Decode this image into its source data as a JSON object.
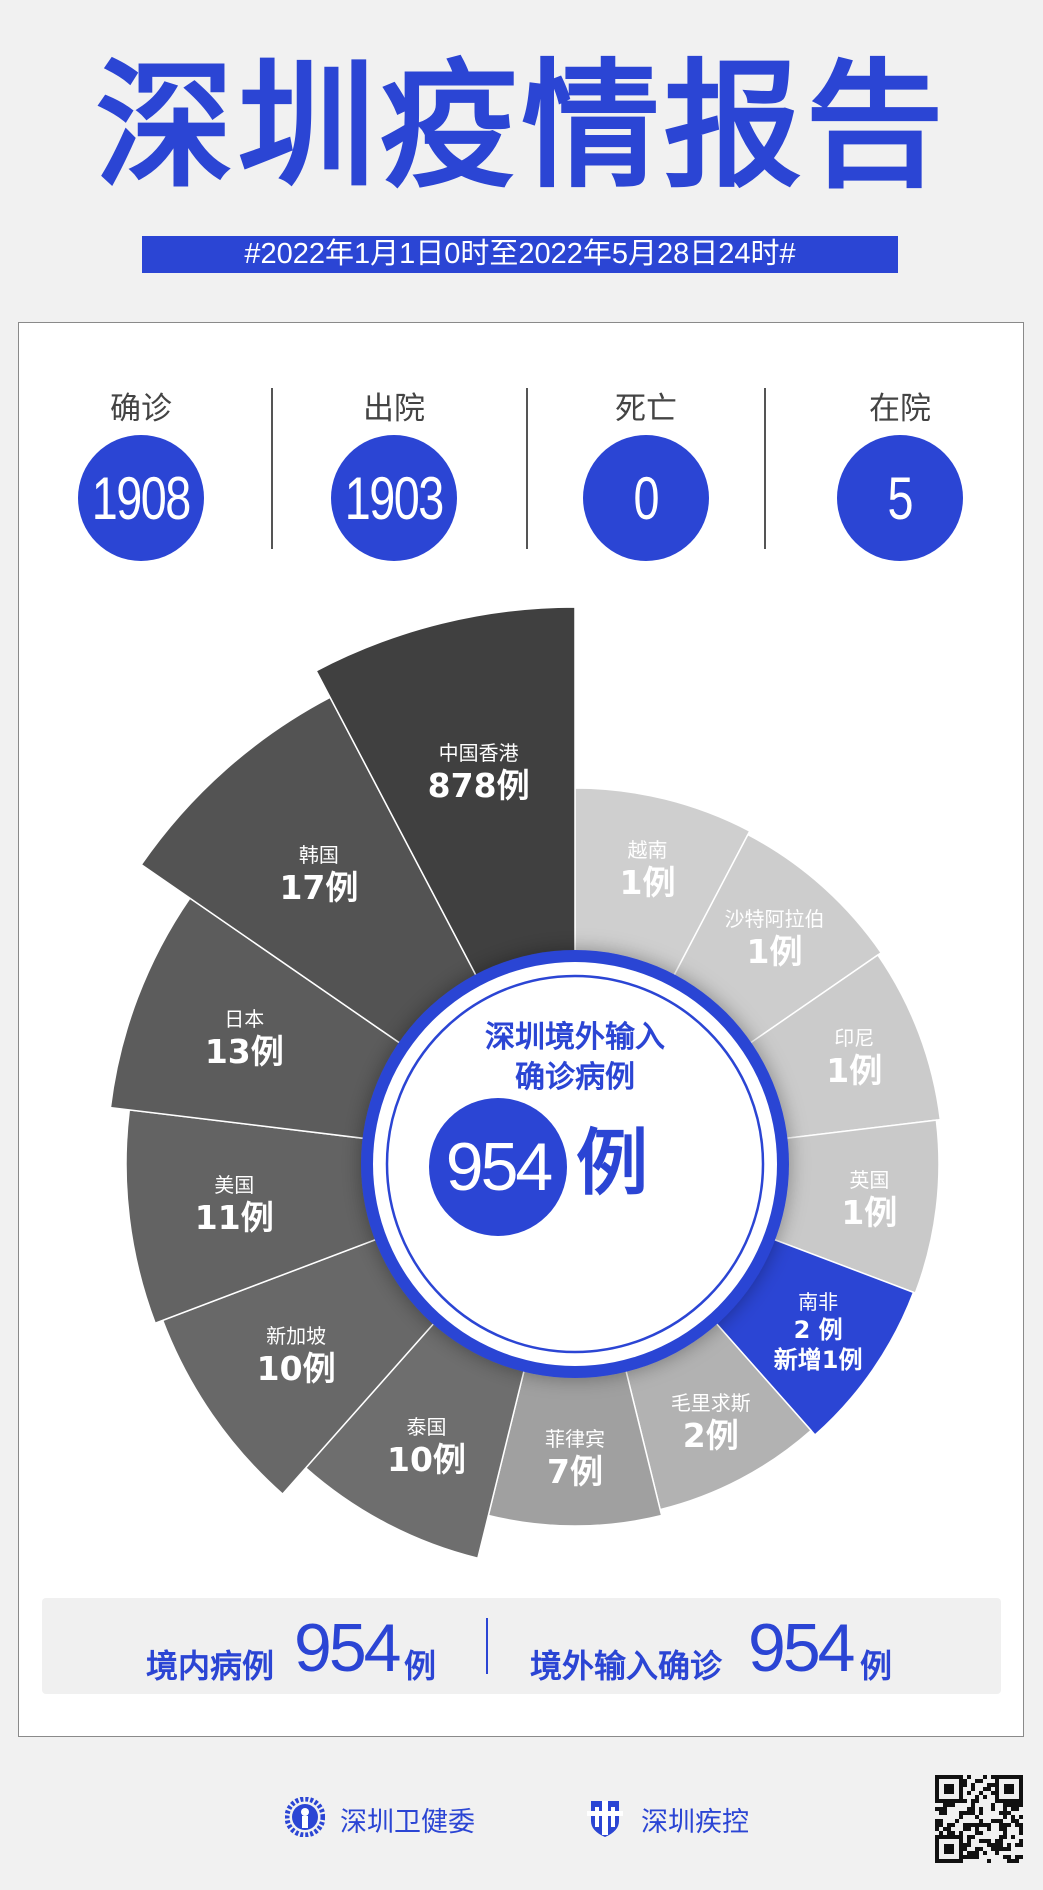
{
  "header": {
    "title": "深圳疫情报告",
    "date_range": "#2022年1月1日0时至2022年5月28日24时#"
  },
  "stats": [
    {
      "label": "确诊",
      "value": "1908"
    },
    {
      "label": "出院",
      "value": "1903"
    },
    {
      "label": "死亡",
      "value": "0"
    },
    {
      "label": "在院",
      "value": "5"
    }
  ],
  "chart_data": {
    "type": "pie",
    "style": "rose",
    "title": "深圳境外输入确诊病例",
    "title_line1": "深圳境外输入",
    "title_line2": "确诊病例",
    "total": "954",
    "unit": "例",
    "items": [
      {
        "name": "越南",
        "value": 1,
        "label": "1例",
        "color": "#cfcfcf"
      },
      {
        "name": "沙特阿拉伯",
        "value": 1,
        "label": "1例",
        "color": "#cdcdcd"
      },
      {
        "name": "印尼",
        "value": 1,
        "label": "1例",
        "color": "#cbcbcb"
      },
      {
        "name": "英国",
        "value": 1,
        "label": "1例",
        "color": "#c9c9c9"
      },
      {
        "name": "南非",
        "value": 2,
        "label": "2 例",
        "note": "新增1例",
        "color": "#2b45d4"
      },
      {
        "name": "毛里求斯",
        "value": 2,
        "label": "2例",
        "color": "#b2b2b2"
      },
      {
        "name": "菲律宾",
        "value": 7,
        "label": "7例",
        "color": "#a0a0a0"
      },
      {
        "name": "泰国",
        "value": 10,
        "label": "10例",
        "color": "#6e6e6e"
      },
      {
        "name": "新加坡",
        "value": 10,
        "label": "10例",
        "color": "#686868"
      },
      {
        "name": "美国",
        "value": 11,
        "label": "11例",
        "color": "#636363"
      },
      {
        "name": "日本",
        "value": 13,
        "label": "13例",
        "color": "#5c5c5c"
      },
      {
        "name": "韩国",
        "value": 17,
        "label": "17例",
        "color": "#535353"
      },
      {
        "name": "中国香港",
        "value": 878,
        "label": "878例",
        "color": "#404040"
      }
    ]
  },
  "summary": {
    "domestic_label": "境内病例",
    "domestic_value": "954",
    "domestic_unit": "例",
    "imported_label": "境外输入确诊",
    "imported_value": "954",
    "imported_unit": "例"
  },
  "footer": {
    "org1": "深圳卫健委",
    "org2": "深圳疾控"
  },
  "colors": {
    "accent": "#2b45d4",
    "background": "#f1f1f1"
  }
}
